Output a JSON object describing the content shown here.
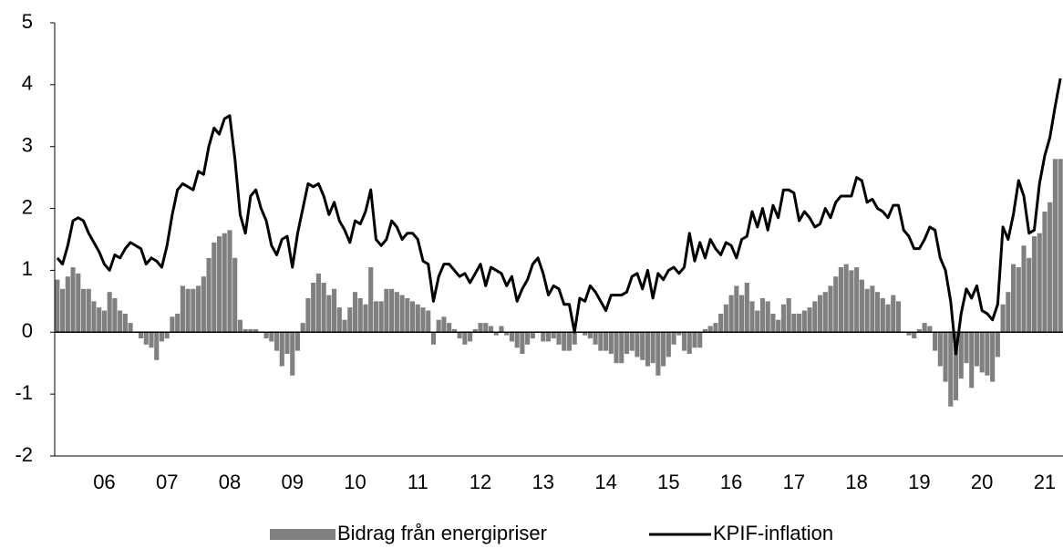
{
  "chart_data": {
    "type": "bar-line",
    "categories": [
      null,
      null,
      null,
      null,
      null,
      null,
      null,
      null,
      null,
      "06",
      null,
      null,
      null,
      null,
      null,
      null,
      null,
      null,
      null,
      null,
      null,
      "07",
      null,
      null,
      null,
      null,
      null,
      null,
      null,
      null,
      null,
      null,
      null,
      "08",
      null,
      null,
      null,
      null,
      null,
      null,
      null,
      null,
      null,
      null,
      null,
      "09",
      null,
      null,
      null,
      null,
      null,
      null,
      null,
      null,
      null,
      null,
      null,
      "10",
      null,
      null,
      null,
      null,
      null,
      null,
      null,
      null,
      null,
      null,
      null,
      "11",
      null,
      null,
      null,
      null,
      null,
      null,
      null,
      null,
      null,
      null,
      null,
      "12",
      null,
      null,
      null,
      null,
      null,
      null,
      null,
      null,
      null,
      null,
      null,
      "13",
      null,
      null,
      null,
      null,
      null,
      null,
      null,
      null,
      null,
      null,
      null,
      "14",
      null,
      null,
      null,
      null,
      null,
      null,
      null,
      null,
      null,
      null,
      null,
      "15",
      null,
      null,
      null,
      null,
      null,
      null,
      null,
      null,
      null,
      null,
      null,
      "16",
      null,
      null,
      null,
      null,
      null,
      null,
      null,
      null,
      null,
      null,
      null,
      "17",
      null,
      null,
      null,
      null,
      null,
      null,
      null,
      null,
      null,
      null,
      null,
      "18",
      null,
      null,
      null,
      null,
      null,
      null,
      null,
      null,
      null,
      null,
      null,
      "19",
      null,
      null,
      null,
      null,
      null,
      null,
      null,
      null,
      null,
      null,
      null,
      "20",
      null,
      null,
      null,
      null,
      null,
      null,
      null,
      null,
      null,
      null,
      null,
      "21",
      null,
      null,
      null
    ],
    "series": [
      {
        "name": "Bidrag från energipriser",
        "kind": "bar",
        "color": "#808080",
        "values": [
          0.85,
          0.7,
          0.9,
          1.05,
          0.95,
          0.7,
          0.7,
          0.5,
          0.4,
          0.35,
          0.65,
          0.55,
          0.35,
          0.3,
          0.15,
          0.0,
          -0.1,
          -0.2,
          -0.25,
          -0.45,
          -0.15,
          -0.1,
          0.25,
          0.3,
          0.75,
          0.7,
          0.7,
          0.75,
          0.9,
          1.2,
          1.45,
          1.55,
          1.6,
          1.65,
          1.2,
          0.2,
          0.05,
          0.05,
          0.05,
          0.0,
          -0.1,
          -0.15,
          -0.3,
          -0.55,
          -0.35,
          -0.7,
          -0.3,
          0.15,
          0.55,
          0.8,
          0.95,
          0.8,
          0.6,
          0.7,
          0.4,
          0.2,
          0.4,
          0.65,
          0.55,
          0.45,
          1.05,
          0.5,
          0.5,
          0.7,
          0.7,
          0.65,
          0.6,
          0.55,
          0.5,
          0.45,
          0.4,
          0.35,
          -0.2,
          0.2,
          0.25,
          0.15,
          0.05,
          -0.1,
          -0.2,
          -0.15,
          0.05,
          0.15,
          0.15,
          0.1,
          -0.05,
          0.1,
          -0.05,
          -0.15,
          -0.25,
          -0.35,
          -0.2,
          -0.1,
          0.0,
          -0.15,
          -0.15,
          -0.1,
          -0.2,
          -0.3,
          -0.3,
          -0.2,
          0.0,
          -0.05,
          -0.1,
          -0.2,
          -0.3,
          -0.3,
          -0.35,
          -0.5,
          -0.5,
          -0.35,
          -0.3,
          -0.4,
          -0.45,
          -0.55,
          -0.5,
          -0.7,
          -0.55,
          -0.4,
          -0.2,
          -0.05,
          -0.3,
          -0.35,
          -0.25,
          -0.25,
          0.05,
          0.1,
          0.15,
          0.3,
          0.45,
          0.6,
          0.75,
          0.6,
          0.8,
          0.5,
          0.35,
          0.55,
          0.5,
          0.3,
          0.2,
          0.45,
          0.55,
          0.3,
          0.3,
          0.35,
          0.4,
          0.5,
          0.6,
          0.65,
          0.75,
          0.9,
          1.05,
          1.1,
          1.0,
          1.05,
          0.85,
          0.7,
          0.75,
          0.65,
          0.55,
          0.45,
          0.6,
          0.5,
          0.0,
          -0.05,
          -0.1,
          0.05,
          0.15,
          0.1,
          -0.3,
          -0.55,
          -0.8,
          -1.2,
          -1.1,
          -0.75,
          -0.5,
          -0.9,
          -0.55,
          -0.65,
          -0.7,
          -0.8,
          -0.4,
          0.45,
          0.65,
          1.1,
          1.05,
          1.4,
          1.2,
          1.55,
          1.6,
          1.95,
          2.1,
          2.8,
          2.8
        ]
      },
      {
        "name": "KPIF-inflation",
        "kind": "line",
        "color": "#000000",
        "values": [
          1.2,
          1.1,
          1.4,
          1.8,
          1.85,
          1.8,
          1.6,
          1.45,
          1.3,
          1.1,
          1.0,
          1.25,
          1.2,
          1.35,
          1.45,
          1.4,
          1.35,
          1.1,
          1.2,
          1.15,
          1.05,
          1.4,
          1.9,
          2.3,
          2.4,
          2.35,
          2.3,
          2.6,
          2.55,
          3.0,
          3.3,
          3.2,
          3.45,
          3.5,
          2.8,
          1.9,
          1.6,
          2.2,
          2.3,
          2.0,
          1.8,
          1.4,
          1.25,
          1.5,
          1.55,
          1.05,
          1.6,
          2.0,
          2.4,
          2.35,
          2.4,
          2.2,
          1.9,
          2.1,
          1.8,
          1.65,
          1.45,
          1.8,
          1.75,
          1.95,
          2.3,
          1.5,
          1.4,
          1.5,
          1.8,
          1.7,
          1.5,
          1.6,
          1.6,
          1.5,
          1.15,
          1.1,
          0.5,
          0.9,
          1.1,
          1.1,
          1.0,
          0.9,
          0.95,
          0.8,
          0.95,
          1.1,
          0.75,
          1.05,
          1.0,
          0.95,
          0.75,
          0.9,
          0.5,
          0.7,
          0.85,
          1.1,
          1.2,
          0.95,
          0.6,
          0.75,
          0.7,
          0.45,
          0.45,
          0.0,
          0.55,
          0.5,
          0.75,
          0.65,
          0.5,
          0.35,
          0.6,
          0.6,
          0.6,
          0.65,
          0.9,
          0.95,
          0.7,
          1.0,
          0.55,
          0.95,
          0.85,
          1.0,
          1.05,
          0.95,
          1.05,
          1.6,
          1.15,
          1.45,
          1.2,
          1.5,
          1.35,
          1.25,
          1.45,
          1.4,
          1.2,
          1.5,
          1.55,
          1.95,
          1.7,
          2.0,
          1.65,
          2.05,
          1.85,
          2.3,
          2.3,
          2.25,
          1.8,
          1.95,
          1.85,
          1.7,
          1.75,
          2.0,
          1.85,
          2.1,
          2.2,
          2.2,
          2.2,
          2.5,
          2.45,
          2.1,
          2.15,
          2.0,
          1.95,
          1.85,
          2.05,
          2.05,
          1.65,
          1.55,
          1.35,
          1.35,
          1.5,
          1.7,
          1.65,
          1.2,
          1.0,
          0.5,
          -0.35,
          0.3,
          0.7,
          0.55,
          0.75,
          0.35,
          0.3,
          0.2,
          0.45,
          1.7,
          1.5,
          1.9,
          2.45,
          2.2,
          1.6,
          1.65,
          2.4,
          2.85,
          3.15,
          3.65,
          4.1
        ]
      }
    ],
    "ylim": [
      -2,
      5
    ],
    "yticks": [
      -2,
      -1,
      0,
      1,
      2,
      3,
      4,
      5
    ]
  }
}
